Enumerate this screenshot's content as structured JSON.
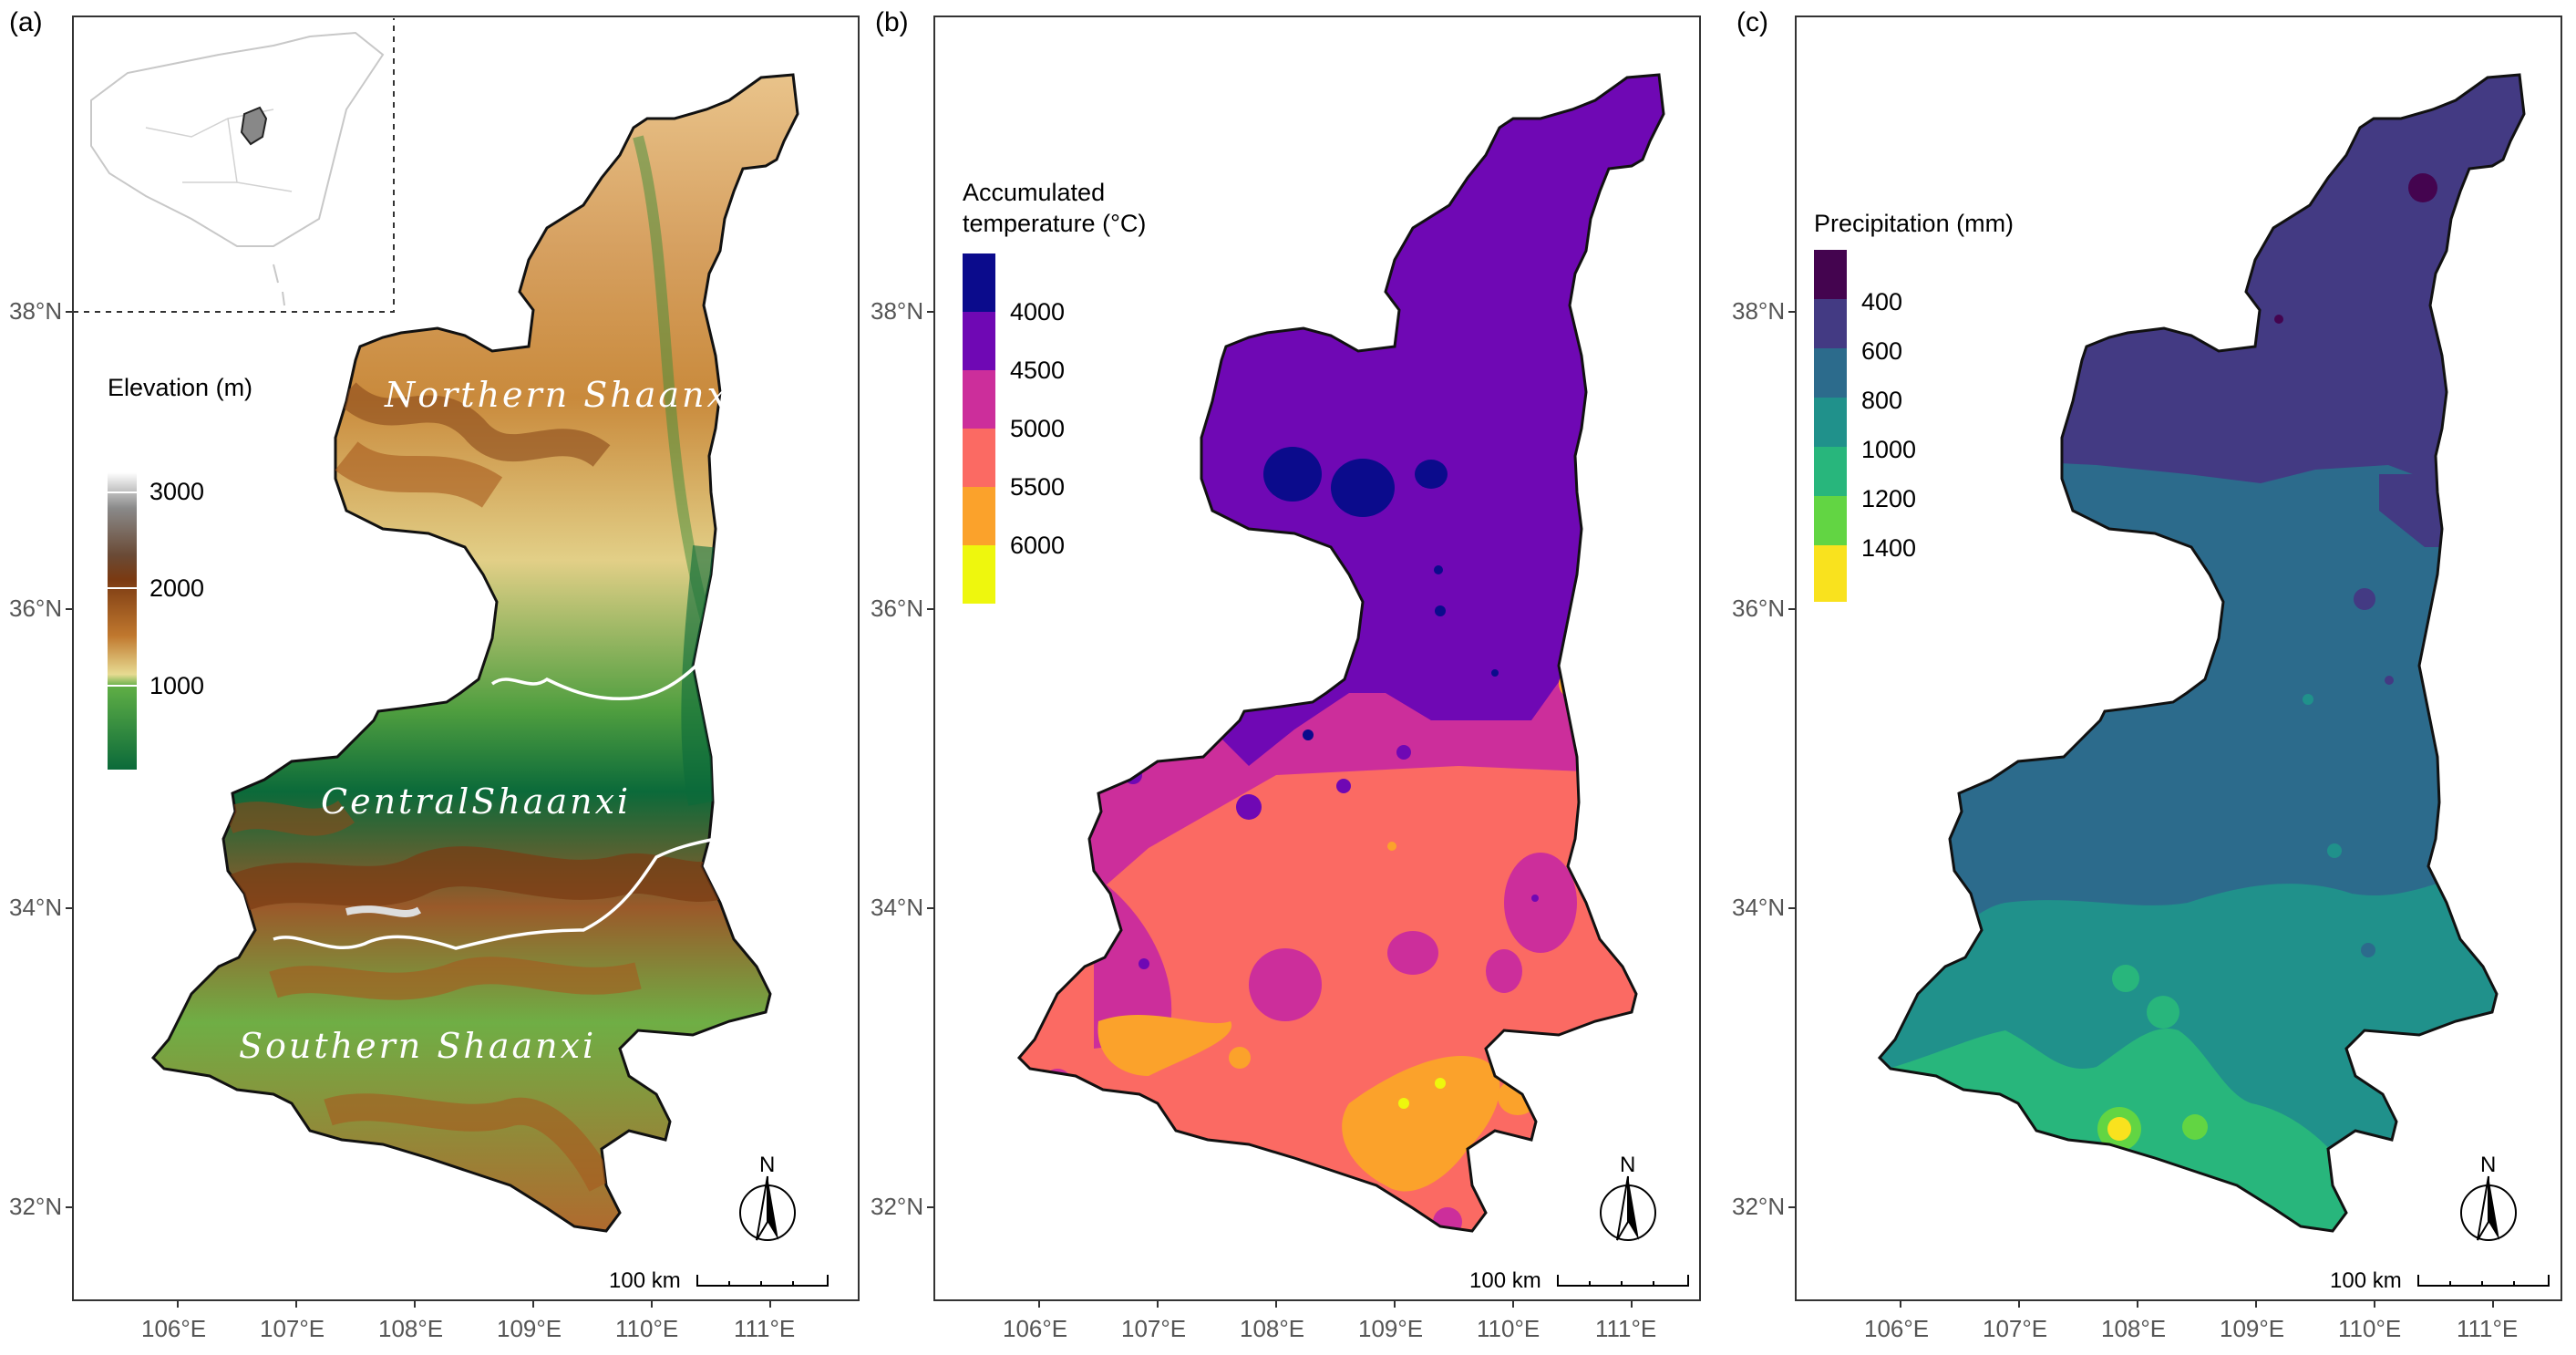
{
  "panels": [
    {
      "id": "a",
      "label": "(a)",
      "legend_title": "Elevation (m)",
      "legend_ticks": [
        "3000",
        "2000",
        "1000"
      ],
      "legend_colors": [
        "#ffffff",
        "#c0c0c0",
        "#6e6e6e",
        "#5a3418",
        "#a65a1e",
        "#c98a3c",
        "#e6d48a",
        "#5fae45",
        "#0f7a3a",
        "#0b6a3a"
      ],
      "regions": [
        "Northern Shaanxi",
        "CentralShaanxi",
        "Southern Shaanxi"
      ]
    },
    {
      "id": "b",
      "label": "(b)",
      "legend_title_1": "Accumulated",
      "legend_title_2": "temperature (°C)",
      "legend_ticks": [
        "4000",
        "4500",
        "5000",
        "5500",
        "6000"
      ],
      "legend_colors": [
        "#0b0b8c",
        "#6f08b4",
        "#cc2e9b",
        "#fb6a63",
        "#fba22b",
        "#eef70d"
      ]
    },
    {
      "id": "c",
      "label": "(c)",
      "legend_title": "Precipitation (mm)",
      "legend_ticks": [
        "400",
        "600",
        "800",
        "1000",
        "1200",
        "1400"
      ],
      "legend_colors": [
        "#44044f",
        "#433a83",
        "#2c6b8c",
        "#20918b",
        "#28b67c",
        "#62d543",
        "#f9e21e"
      ]
    }
  ],
  "axes": {
    "x_ticks": [
      "106°E",
      "107°E",
      "108°E",
      "109°E",
      "110°E",
      "111°E"
    ],
    "y_ticks": [
      "38°N",
      "36°N",
      "34°N",
      "32°N"
    ]
  },
  "north_label": "N",
  "scalebar_label": "100 km"
}
